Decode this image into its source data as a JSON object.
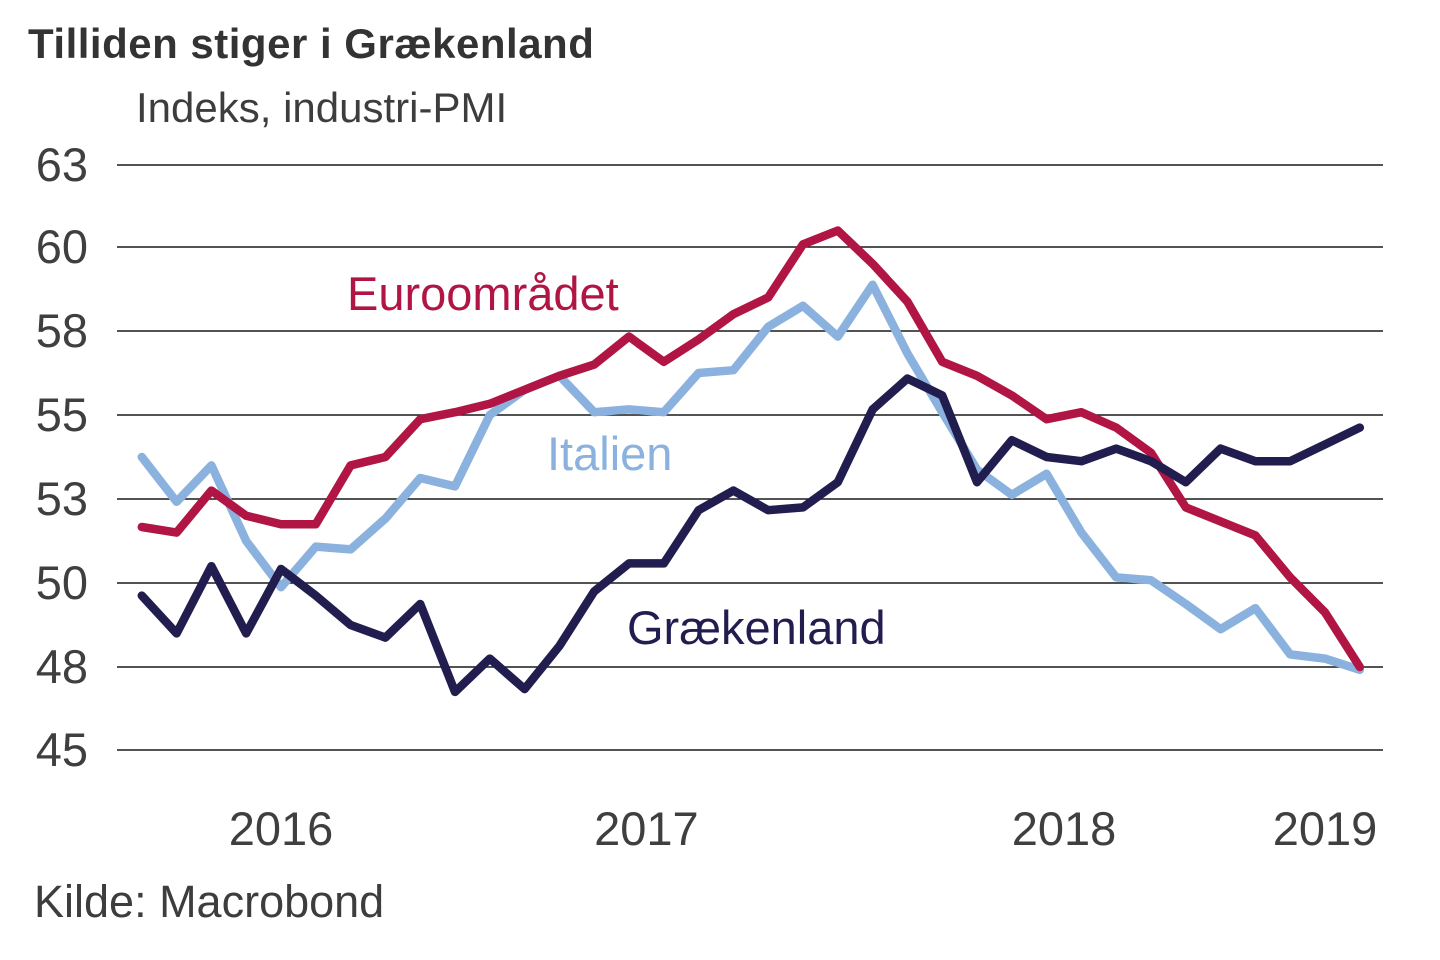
{
  "title": "Tilliden stiger i Grækenland",
  "subtitle": "Indeks, industri-PMI",
  "source": "Kilde: Macrobond",
  "colors": {
    "euro_area": "#b01543",
    "italy": "#8bb2de",
    "greece": "#221d4f",
    "gridline": "#1a1a1a",
    "axis_text": "#3f3f3f",
    "title_text": "#333333",
    "background": "#ffffff"
  },
  "series_labels": {
    "euro_area": "Euroområdet",
    "italy": "Italien",
    "greece": "Grækenland"
  },
  "chart_data": {
    "type": "line",
    "title": "Tilliden stiger i Grækenland",
    "subtitle": "Indeks, industri-PMI",
    "source": "Kilde: Macrobond",
    "xlabel": "",
    "ylabel": "Indeks, industri-PMI",
    "grid": "horizontal gridlines only, equally spaced",
    "legend": "inline colored labels next to lines",
    "y_gridline_values": [
      63,
      60,
      58,
      55,
      53,
      50,
      48,
      45
    ],
    "ylim": [
      45,
      63
    ],
    "x_tick_labels": [
      "2016",
      "2017",
      "2018",
      "2019"
    ],
    "x": [
      "2016-04",
      "2016-05",
      "2016-06",
      "2016-07",
      "2016-08",
      "2016-09",
      "2016-10",
      "2016-11",
      "2016-12",
      "2017-01",
      "2017-02",
      "2017-03",
      "2017-04",
      "2017-05",
      "2017-06",
      "2017-07",
      "2017-08",
      "2017-09",
      "2017-10",
      "2017-11",
      "2017-12",
      "2018-01",
      "2018-02",
      "2018-03",
      "2018-04",
      "2018-05",
      "2018-06",
      "2018-07",
      "2018-08",
      "2018-09",
      "2018-10",
      "2018-11",
      "2018-12",
      "2019-01",
      "2019-02",
      "2019-03"
    ],
    "series": [
      {
        "name": "Euroområdet",
        "color": "#b01543",
        "values": [
          52.0,
          51.8,
          53.2,
          52.4,
          52.1,
          52.1,
          53.8,
          54.0,
          54.9,
          55.1,
          55.4,
          55.9,
          56.4,
          56.8,
          57.8,
          56.9,
          57.7,
          58.4,
          58.8,
          60.1,
          60.6,
          59.6,
          58.7,
          56.9,
          56.4,
          55.7,
          54.9,
          55.1,
          54.7,
          54.1,
          52.7,
          52.2,
          51.7,
          50.2,
          49.3,
          48.0
        ]
      },
      {
        "name": "Italien",
        "color": "#8bb2de",
        "values": [
          54.0,
          52.9,
          53.8,
          51.5,
          49.9,
          51.3,
          51.2,
          52.3,
          53.5,
          53.3,
          55.0,
          55.9,
          56.4,
          55.1,
          55.2,
          55.1,
          56.5,
          56.6,
          58.1,
          58.6,
          57.8,
          59.1,
          57.2,
          55.1,
          53.7,
          53.1,
          53.6,
          51.8,
          50.2,
          50.1,
          49.5,
          48.9,
          49.4,
          48.3,
          48.2,
          47.9
        ]
      },
      {
        "name": "Grækenland",
        "color": "#221d4f",
        "values": [
          49.7,
          48.8,
          50.6,
          48.8,
          50.5,
          49.7,
          49.0,
          48.7,
          49.5,
          47.1,
          48.2,
          47.2,
          48.5,
          49.8,
          50.7,
          50.7,
          52.6,
          53.2,
          52.6,
          52.7,
          53.4,
          55.2,
          56.3,
          55.7,
          53.4,
          54.4,
          54.0,
          53.9,
          54.2,
          53.9,
          53.4,
          54.2,
          53.9,
          53.9,
          54.3,
          54.7
        ]
      }
    ]
  }
}
